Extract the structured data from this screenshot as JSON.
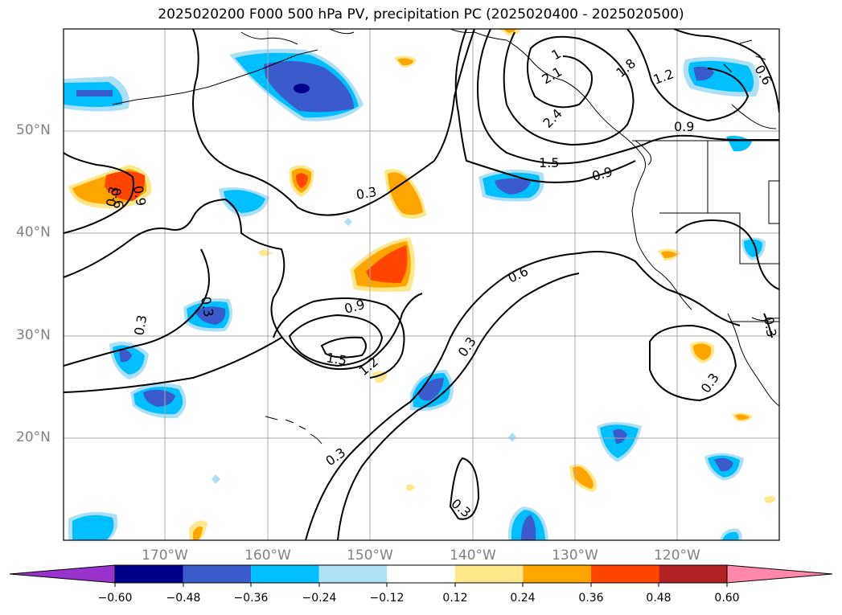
{
  "title": "2025020200 F000 500 hPa PV, precipitation PC (2025020400 - 2025020500)",
  "lat_labels": [
    "50°N",
    "40°N",
    "30°N",
    "20°N"
  ],
  "lon_labels": [
    "170°W",
    "160°W",
    "150°W",
    "140°W",
    "130°W",
    "120°W"
  ],
  "contour_labels": [
    "1",
    "2.1",
    "2.4",
    "1.8",
    "1.2",
    "0.6",
    "0.9",
    "1.5",
    "0.9",
    "0.3",
    "0.6",
    "0.9",
    "0.3",
    "0.6",
    "0.9",
    "1.5",
    "1.2",
    "0.3",
    "0.3",
    "0.3",
    "0.3",
    "0.3",
    "0.3",
    "0.3",
    "0.3",
    "0.6",
    "0.9",
    "0.6",
    "0.9"
  ],
  "colorbar": {
    "ticks": [
      "−0.60",
      "−0.48",
      "−0.36",
      "−0.24",
      "−0.12",
      "0.12",
      "0.24",
      "0.36",
      "0.48",
      "0.60"
    ],
    "colors": [
      "#9933CC",
      "#00008B",
      "#3A5BCC",
      "#00BFFF",
      "#ADE0F7",
      "#FFFFFF",
      "#FFE88C",
      "#FFA500",
      "#FF4500",
      "#B22222",
      "#FF88AA"
    ]
  },
  "colors": {
    "pos1": "#FFE88C",
    "pos2": "#FFA500",
    "pos3": "#FF4500",
    "neg1": "#ADE0F7",
    "neg2": "#00BFFF",
    "neg3": "#3A5BCC",
    "neg4": "#00008B",
    "grid": "#AAAAAA",
    "coast": "#000000"
  }
}
